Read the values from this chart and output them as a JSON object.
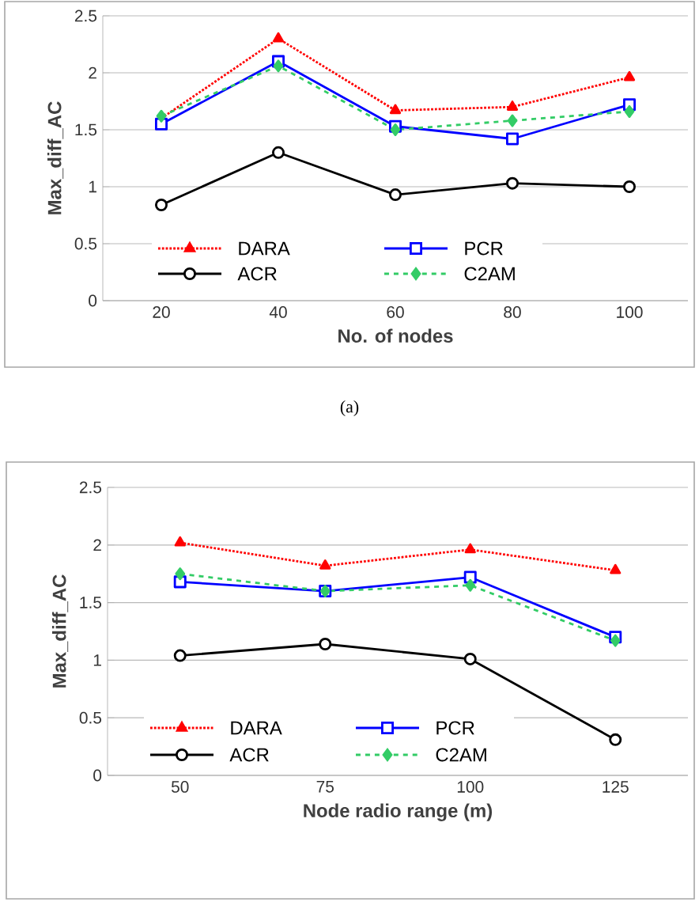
{
  "chart_data": [
    {
      "type": "line",
      "xlabel": "No. of nodes",
      "ylabel": "Max_diff_AC",
      "categories": [
        "20",
        "40",
        "60",
        "80",
        "100"
      ],
      "series": [
        {
          "name": "DARA",
          "color": "#ff0000",
          "marker": "triangle",
          "line_style": "dotted",
          "values": [
            1.6,
            2.3,
            1.67,
            1.7,
            1.96
          ]
        },
        {
          "name": "PCR",
          "color": "#0000ff",
          "marker": "square",
          "line_style": "solid",
          "values": [
            1.55,
            2.1,
            1.53,
            1.42,
            1.72
          ]
        },
        {
          "name": "ACR",
          "color": "#000000",
          "marker": "circle",
          "line_style": "solid",
          "values": [
            0.84,
            1.3,
            0.93,
            1.03,
            1.0
          ]
        },
        {
          "name": "C2AM",
          "color": "#33cc66",
          "marker": "diamond",
          "line_style": "dashed",
          "values": [
            1.62,
            2.06,
            1.5,
            1.58,
            1.66
          ]
        }
      ],
      "ylim": [
        0,
        2.5
      ],
      "yticks": [
        0,
        0.5,
        1,
        1.5,
        2,
        2.5
      ],
      "grid": "y",
      "legend": "bottom",
      "annotations": [
        "(a)"
      ]
    },
    {
      "type": "line",
      "xlabel": "Node radio range (m)",
      "ylabel": "Max_diff_AC",
      "categories": [
        "50",
        "75",
        "100",
        "125"
      ],
      "series": [
        {
          "name": "DARA",
          "color": "#ff0000",
          "marker": "triangle",
          "line_style": "dotted",
          "values": [
            2.02,
            1.82,
            1.96,
            1.78
          ]
        },
        {
          "name": "PCR",
          "color": "#0000ff",
          "marker": "square",
          "line_style": "solid",
          "values": [
            1.68,
            1.6,
            1.72,
            1.2
          ]
        },
        {
          "name": "ACR",
          "color": "#000000",
          "marker": "circle",
          "line_style": "solid",
          "values": [
            1.04,
            1.14,
            1.01,
            0.31
          ]
        },
        {
          "name": "C2AM",
          "color": "#33cc66",
          "marker": "diamond",
          "line_style": "dashed",
          "values": [
            1.75,
            1.6,
            1.65,
            1.17
          ]
        }
      ],
      "ylim": [
        0,
        2.5
      ],
      "yticks": [
        0,
        0.5,
        1,
        1.5,
        2,
        2.5
      ],
      "grid": "y",
      "legend": "bottom"
    }
  ]
}
